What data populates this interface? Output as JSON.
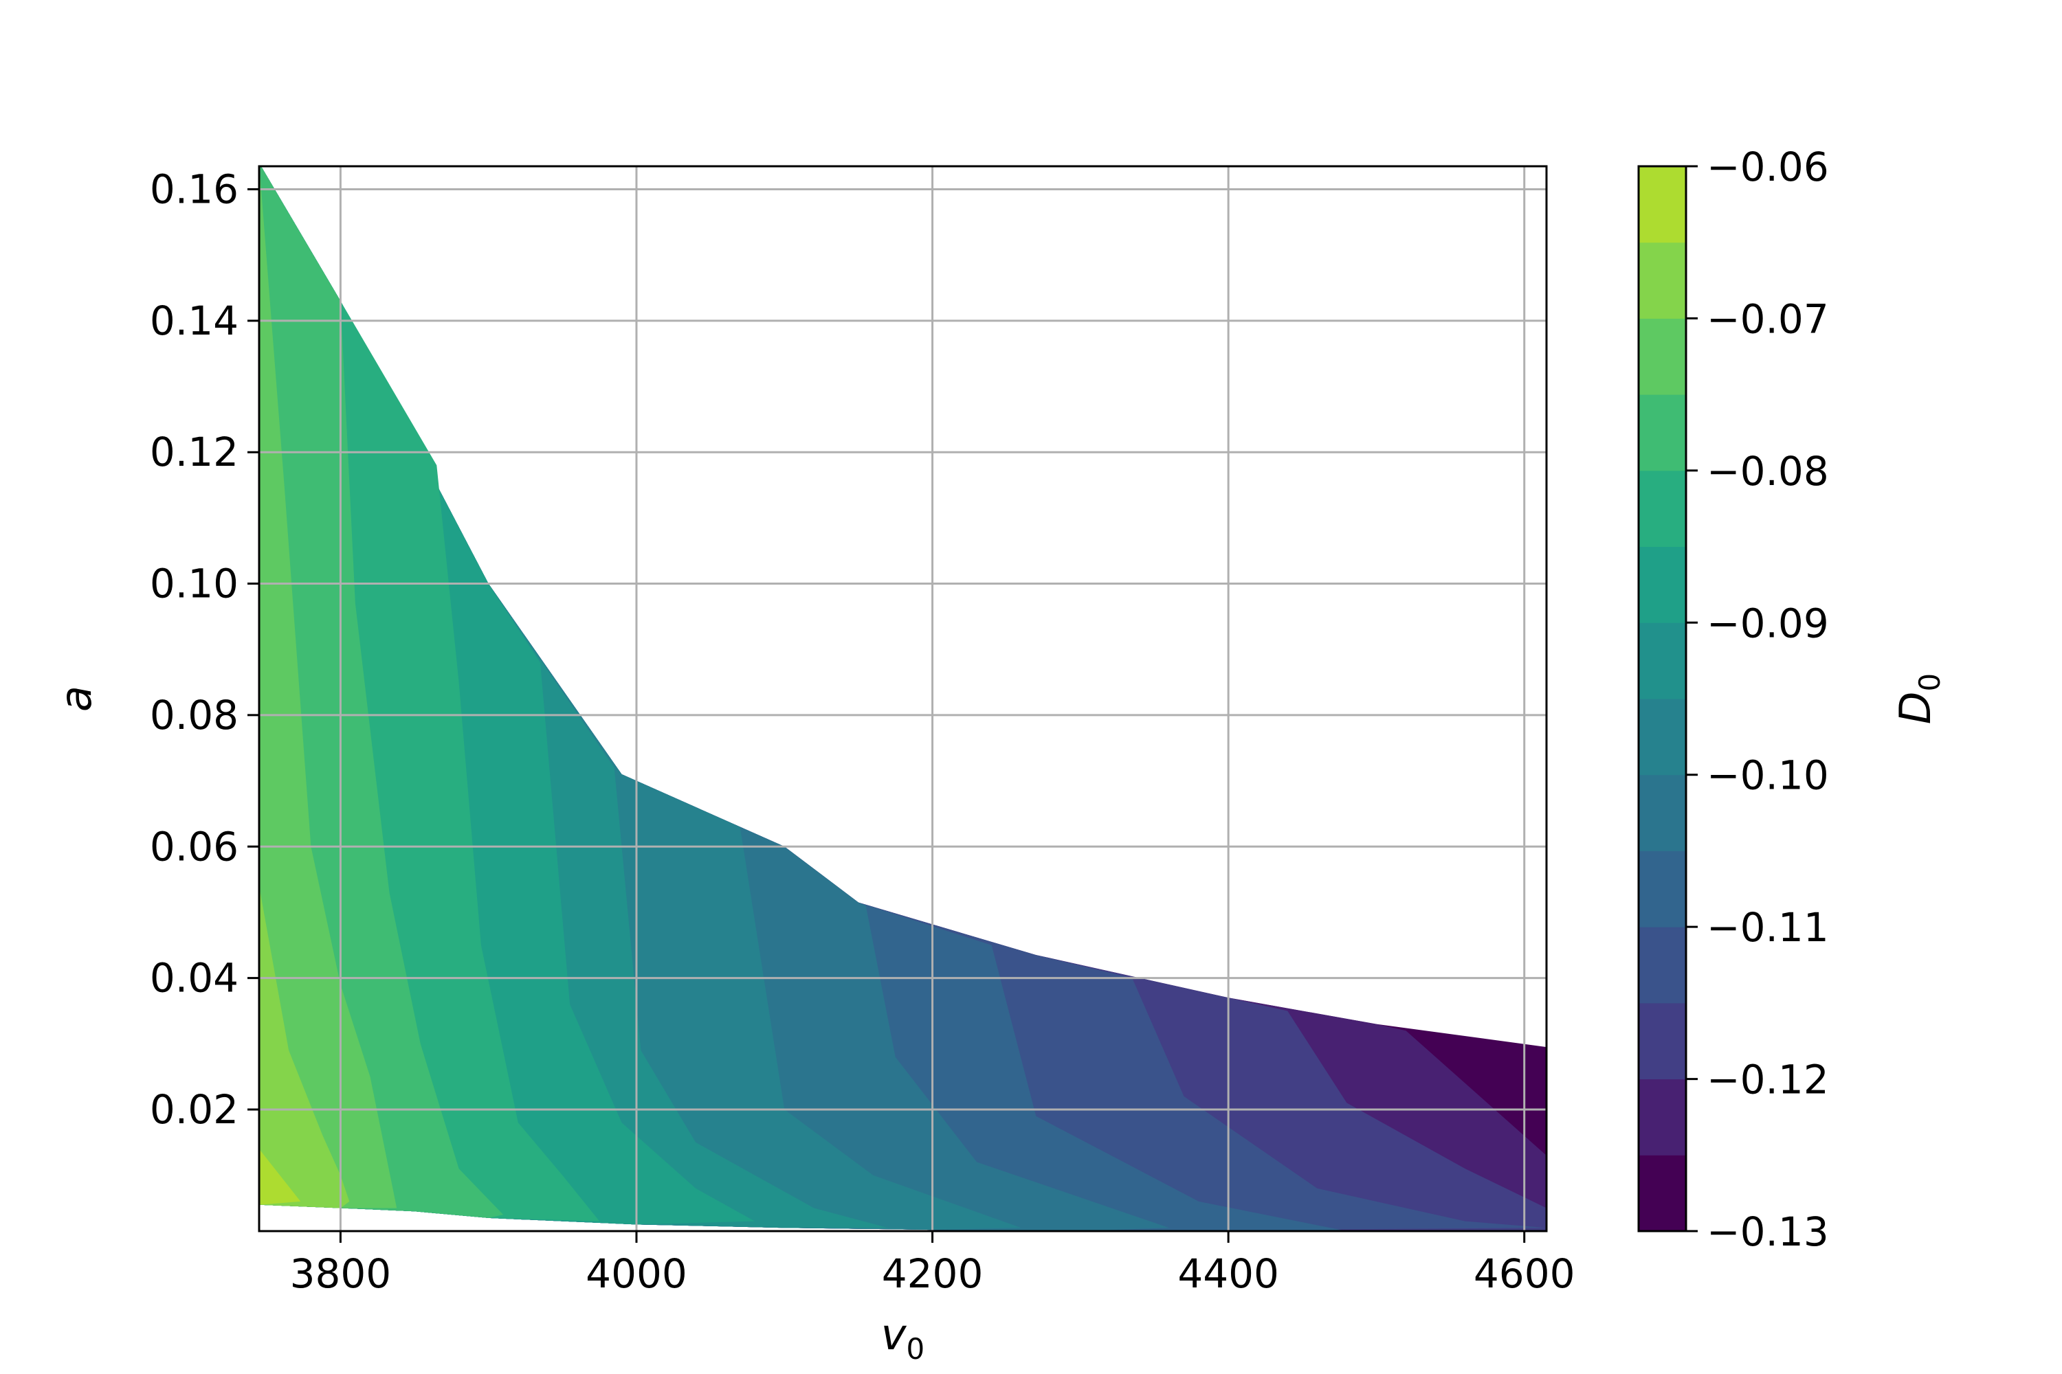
{
  "chart_data": {
    "type": "contourf",
    "title": "",
    "xlabel": "v",
    "xlabel_sub": "0",
    "ylabel": "a",
    "colorbar_label": "D",
    "colorbar_label_sub": "0",
    "xlim": [
      3745,
      4615
    ],
    "ylim": [
      0.0015,
      0.1635
    ],
    "xticks": [
      3800,
      4000,
      4200,
      4400,
      4600
    ],
    "xtick_labels": [
      "3800",
      "4000",
      "4200",
      "4400",
      "4600"
    ],
    "yticks": [
      0.02,
      0.04,
      0.06,
      0.08,
      0.1,
      0.12,
      0.14,
      0.16
    ],
    "ytick_labels": [
      "0.02",
      "0.04",
      "0.06",
      "0.08",
      "0.10",
      "0.12",
      "0.14",
      "0.16"
    ],
    "grid": true,
    "colorbar_range": [
      -0.13,
      -0.06
    ],
    "colorbar_ticks": [
      -0.06,
      -0.07,
      -0.08,
      -0.09,
      -0.1,
      -0.11,
      -0.12,
      -0.13
    ],
    "colorbar_tick_labels": [
      "−0.06",
      "−0.07",
      "−0.08",
      "−0.09",
      "−0.10",
      "−0.11",
      "−0.12",
      "−0.13"
    ],
    "levels": [
      -0.13,
      -0.125,
      -0.12,
      -0.115,
      -0.11,
      -0.105,
      -0.1,
      -0.095,
      -0.09,
      -0.085,
      -0.08,
      -0.075,
      -0.07,
      -0.065,
      -0.06
    ],
    "level_colors": [
      "#440154",
      "#482172",
      "#423f85",
      "#3a538b",
      "#32658e",
      "#2b758e",
      "#26828e",
      "#21918c",
      "#1fa088",
      "#28ae80",
      "#3fbc73",
      "#5ec962",
      "#84d44b",
      "#addc30",
      "#d8e219"
    ],
    "top_boundary": [
      [
        3745,
        0.164
      ],
      [
        3800,
        0.143
      ],
      [
        3900,
        0.1
      ],
      [
        3990,
        0.071
      ],
      [
        4100,
        0.06
      ],
      [
        4150,
        0.0515
      ],
      [
        4270,
        0.0435
      ],
      [
        4400,
        0.037
      ],
      [
        4500,
        0.033
      ],
      [
        4615,
        0.0295
      ]
    ],
    "bottom_boundary": [
      [
        3745,
        0.0055
      ],
      [
        3800,
        0.005
      ],
      [
        3850,
        0.0045
      ],
      [
        3900,
        0.0035
      ],
      [
        4000,
        0.0025
      ],
      [
        4100,
        0.002
      ],
      [
        4200,
        0.0017
      ],
      [
        4300,
        0.0015
      ],
      [
        4615,
        0.0015
      ]
    ],
    "contour_lines": [
      {
        "level": -0.065,
        "points": [
          [
            3745,
            0.014
          ],
          [
            3773,
            0.006
          ]
        ]
      },
      {
        "level": -0.07,
        "points": [
          [
            3745,
            0.054
          ],
          [
            3765,
            0.029
          ],
          [
            3788,
            0.016
          ],
          [
            3800,
            0.01
          ],
          [
            3806,
            0.006
          ]
        ]
      },
      {
        "level": -0.075,
        "points": [
          [
            3745,
            0.164
          ],
          [
            3762,
            0.115
          ],
          [
            3780,
            0.06
          ],
          [
            3800,
            0.039
          ],
          [
            3820,
            0.025
          ],
          [
            3838,
            0.005
          ]
        ]
      },
      {
        "level": -0.08,
        "points": [
          [
            3800,
            0.143
          ],
          [
            3810,
            0.097
          ],
          [
            3833,
            0.053
          ],
          [
            3854,
            0.03
          ],
          [
            3880,
            0.011
          ],
          [
            3910,
            0.004
          ]
        ]
      },
      {
        "level": -0.085,
        "points": [
          [
            3865,
            0.118
          ],
          [
            3880,
            0.085
          ],
          [
            3895,
            0.045
          ],
          [
            3920,
            0.018
          ],
          [
            3950,
            0.01
          ],
          [
            3975,
            0.003
          ]
        ]
      },
      {
        "level": -0.09,
        "points": [
          [
            3935,
            0.088
          ],
          [
            3955,
            0.036
          ],
          [
            3990,
            0.018
          ],
          [
            4040,
            0.008
          ],
          [
            4080,
            0.003
          ]
        ]
      },
      {
        "level": -0.095,
        "points": [
          [
            3985,
            0.072
          ],
          [
            4003,
            0.029
          ],
          [
            4040,
            0.015
          ],
          [
            4120,
            0.005
          ],
          [
            4170,
            0.002
          ]
        ]
      },
      {
        "level": -0.1,
        "points": [
          [
            4070,
            0.063
          ],
          [
            4100,
            0.02
          ],
          [
            4160,
            0.01
          ],
          [
            4260,
            0.002
          ]
        ]
      },
      {
        "level": -0.105,
        "points": [
          [
            4155,
            0.051
          ],
          [
            4175,
            0.028
          ],
          [
            4230,
            0.012
          ],
          [
            4360,
            0.002
          ]
        ]
      },
      {
        "level": -0.11,
        "points": [
          [
            4240,
            0.045
          ],
          [
            4270,
            0.019
          ],
          [
            4380,
            0.006
          ],
          [
            4480,
            0.0015
          ]
        ]
      },
      {
        "level": -0.115,
        "points": [
          [
            4335,
            0.04
          ],
          [
            4370,
            0.022
          ],
          [
            4460,
            0.008
          ],
          [
            4560,
            0.003
          ],
          [
            4615,
            0.002
          ]
        ]
      },
      {
        "level": -0.12,
        "points": [
          [
            4440,
            0.035
          ],
          [
            4480,
            0.021
          ],
          [
            4560,
            0.011
          ],
          [
            4615,
            0.005
          ]
        ]
      },
      {
        "level": -0.125,
        "points": [
          [
            4520,
            0.032
          ],
          [
            4570,
            0.022
          ],
          [
            4615,
            0.013
          ]
        ]
      }
    ]
  }
}
